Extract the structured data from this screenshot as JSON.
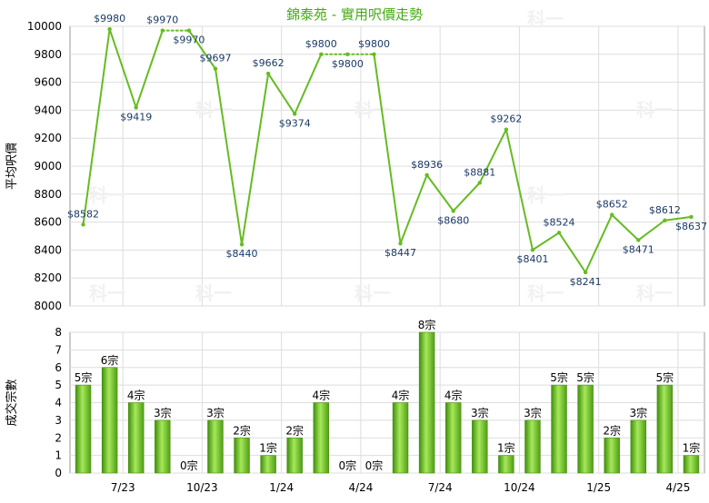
{
  "chart_data": [
    {
      "type": "line",
      "title": "錦泰苑 - 實用呎價走勢",
      "ylabel": "平均呎價",
      "ylim": [
        8000,
        10000
      ],
      "yticks": [
        8000,
        8200,
        8400,
        8600,
        8800,
        9000,
        9200,
        9400,
        9600,
        9800,
        10000
      ],
      "x_tick_labels": [
        "7/23",
        "10/23",
        "1/24",
        "4/24",
        "7/24",
        "10/24",
        "1/25",
        "4/25"
      ],
      "x_tick_after_index": [
        1,
        4,
        7,
        10,
        13,
        16,
        19,
        22
      ],
      "grid": true,
      "line_color": "#66bb22",
      "points": [
        {
          "value": 8582,
          "label": "$8582",
          "has_sale": true
        },
        {
          "value": 9980,
          "label": "$9980",
          "has_sale": true
        },
        {
          "value": 9419,
          "label": "$9419",
          "has_sale": true
        },
        {
          "value": 9970,
          "label": "$9970",
          "has_sale": true
        },
        {
          "value": 9970,
          "label": "$9970",
          "has_sale": false
        },
        {
          "value": 9697,
          "label": "$9697",
          "has_sale": true
        },
        {
          "value": 8440,
          "label": "$8440",
          "has_sale": true
        },
        {
          "value": 9662,
          "label": "$9662",
          "has_sale": true
        },
        {
          "value": 9374,
          "label": "$9374",
          "has_sale": true
        },
        {
          "value": 9800,
          "label": "$9800",
          "has_sale": true
        },
        {
          "value": 9800,
          "label": "$9800",
          "has_sale": false
        },
        {
          "value": 9800,
          "label": "$9800",
          "has_sale": false
        },
        {
          "value": 8447,
          "label": "$8447",
          "has_sale": true
        },
        {
          "value": 8936,
          "label": "$8936",
          "has_sale": true
        },
        {
          "value": 8680,
          "label": "$8680",
          "has_sale": true
        },
        {
          "value": 8881,
          "label": "$8881",
          "has_sale": true
        },
        {
          "value": 9262,
          "label": "$9262",
          "has_sale": true
        },
        {
          "value": 8401,
          "label": "$8401",
          "has_sale": true
        },
        {
          "value": 8524,
          "label": "$8524",
          "has_sale": true
        },
        {
          "value": 8241,
          "label": "$8241",
          "has_sale": true
        },
        {
          "value": 8652,
          "label": "$8652",
          "has_sale": true
        },
        {
          "value": 8471,
          "label": "$8471",
          "has_sale": true
        },
        {
          "value": 8612,
          "label": "$8612",
          "has_sale": true
        },
        {
          "value": 8637,
          "label": "$8637",
          "has_sale": true
        }
      ]
    },
    {
      "type": "bar",
      "ylabel": "成交宗數",
      "ylim": [
        0,
        8
      ],
      "yticks": [
        0,
        1,
        2,
        3,
        4,
        5,
        6,
        7,
        8
      ],
      "values": [
        5,
        6,
        4,
        3,
        0,
        3,
        2,
        1,
        2,
        4,
        0,
        0,
        4,
        8,
        4,
        3,
        1,
        3,
        5,
        5,
        2,
        3,
        5,
        1
      ],
      "value_suffix": "宗",
      "x_tick_labels": [
        "7/23",
        "10/23",
        "1/24",
        "4/24",
        "7/24",
        "10/24",
        "1/25",
        "4/25"
      ],
      "x_tick_after_index": [
        1,
        4,
        7,
        10,
        13,
        16,
        19,
        22
      ],
      "grid": true,
      "bar_color": "#66bb22"
    }
  ],
  "watermark": "科一"
}
